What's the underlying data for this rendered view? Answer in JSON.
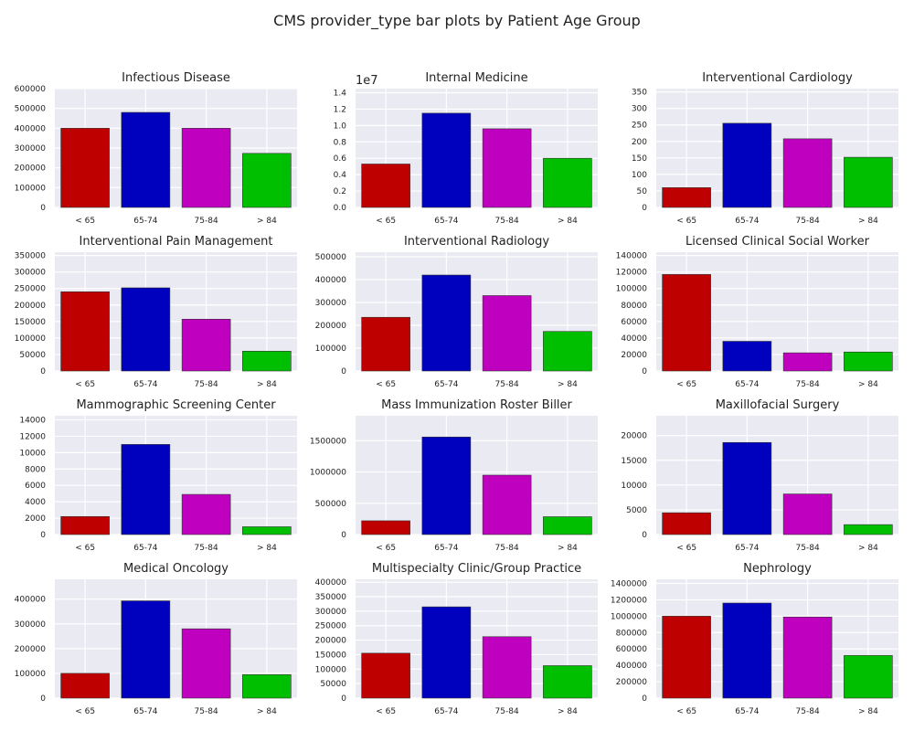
{
  "figure_title": "CMS provider_type bar plots by Patient Age Group",
  "chart_data": [
    {
      "type": "bar",
      "title": "Infectious Disease",
      "categories": [
        "< 65",
        "65-74",
        "75-84",
        "> 84"
      ],
      "values": [
        400000,
        480000,
        400000,
        273000
      ],
      "ylim": [
        0,
        600000
      ],
      "yticks": [
        0,
        100000,
        200000,
        300000,
        400000,
        500000,
        600000
      ],
      "ytick_labels": [
        "0",
        "100000",
        "200000",
        "300000",
        "400000",
        "500000",
        "600000"
      ],
      "offset_text": ""
    },
    {
      "type": "bar",
      "title": "Internal Medicine",
      "categories": [
        "< 65",
        "65-74",
        "75-84",
        "> 84"
      ],
      "values": [
        5300000,
        11500000,
        9600000,
        6000000
      ],
      "ylim": [
        0,
        14500000
      ],
      "yticks": [
        0,
        2000000,
        4000000,
        6000000,
        8000000,
        10000000,
        12000000,
        14000000
      ],
      "ytick_labels": [
        "0.0",
        "0.2",
        "0.4",
        "0.6",
        "0.8",
        "1.0",
        "1.2",
        "1.4"
      ],
      "offset_text": "1e7"
    },
    {
      "type": "bar",
      "title": "Interventional Cardiology",
      "categories": [
        "< 65",
        "65-74",
        "75-84",
        "> 84"
      ],
      "values": [
        60,
        255,
        208,
        152
      ],
      "ylim": [
        0,
        360
      ],
      "yticks": [
        0,
        50,
        100,
        150,
        200,
        250,
        300,
        350
      ],
      "ytick_labels": [
        "0",
        "50",
        "100",
        "150",
        "200",
        "250",
        "300",
        "350"
      ],
      "offset_text": ""
    },
    {
      "type": "bar",
      "title": "Interventional Pain Management",
      "categories": [
        "< 65",
        "65-74",
        "75-84",
        "> 84"
      ],
      "values": [
        240000,
        252000,
        157000,
        60000
      ],
      "ylim": [
        0,
        360000
      ],
      "yticks": [
        0,
        50000,
        100000,
        150000,
        200000,
        250000,
        300000,
        350000
      ],
      "ytick_labels": [
        "0",
        "50000",
        "100000",
        "150000",
        "200000",
        "250000",
        "300000",
        "350000"
      ],
      "offset_text": ""
    },
    {
      "type": "bar",
      "title": "Interventional Radiology",
      "categories": [
        "< 65",
        "65-74",
        "75-84",
        "> 84"
      ],
      "values": [
        235000,
        420000,
        330000,
        173000
      ],
      "ylim": [
        0,
        520000
      ],
      "yticks": [
        0,
        100000,
        200000,
        300000,
        400000,
        500000
      ],
      "ytick_labels": [
        "0",
        "100000",
        "200000",
        "300000",
        "400000",
        "500000"
      ],
      "offset_text": ""
    },
    {
      "type": "bar",
      "title": "Licensed Clinical Social Worker",
      "categories": [
        "< 65",
        "65-74",
        "75-84",
        "> 84"
      ],
      "values": [
        117000,
        36000,
        22000,
        23000
      ],
      "ylim": [
        0,
        144000
      ],
      "yticks": [
        0,
        20000,
        40000,
        60000,
        80000,
        100000,
        120000,
        140000
      ],
      "ytick_labels": [
        "0",
        "20000",
        "40000",
        "60000",
        "80000",
        "100000",
        "120000",
        "140000"
      ],
      "offset_text": ""
    },
    {
      "type": "bar",
      "title": "Mammographic Screening Center",
      "categories": [
        "< 65",
        "65-74",
        "75-84",
        "> 84"
      ],
      "values": [
        2200,
        11000,
        4900,
        950
      ],
      "ylim": [
        0,
        14500
      ],
      "yticks": [
        0,
        2000,
        4000,
        6000,
        8000,
        10000,
        12000,
        14000
      ],
      "ytick_labels": [
        "0",
        "2000",
        "4000",
        "6000",
        "8000",
        "10000",
        "12000",
        "14000"
      ],
      "offset_text": ""
    },
    {
      "type": "bar",
      "title": "Mass Immunization Roster Biller",
      "categories": [
        "< 65",
        "65-74",
        "75-84",
        "> 84"
      ],
      "values": [
        220000,
        1560000,
        950000,
        285000
      ],
      "ylim": [
        0,
        1900000
      ],
      "yticks": [
        0,
        500000,
        1000000,
        1500000
      ],
      "ytick_labels": [
        "0",
        "500000",
        "1000000",
        "1500000"
      ],
      "offset_text": ""
    },
    {
      "type": "bar",
      "title": "Maxillofacial Surgery",
      "categories": [
        "< 65",
        "65-74",
        "75-84",
        "> 84"
      ],
      "values": [
        4400,
        18600,
        8200,
        2000
      ],
      "ylim": [
        0,
        24000
      ],
      "yticks": [
        0,
        5000,
        10000,
        15000,
        20000
      ],
      "ytick_labels": [
        "0",
        "5000",
        "10000",
        "15000",
        "20000"
      ],
      "offset_text": ""
    },
    {
      "type": "bar",
      "title": "Medical Oncology",
      "categories": [
        "< 65",
        "65-74",
        "75-84",
        "> 84"
      ],
      "values": [
        100000,
        393000,
        280000,
        95000
      ],
      "ylim": [
        0,
        480000
      ],
      "yticks": [
        0,
        100000,
        200000,
        300000,
        400000
      ],
      "ytick_labels": [
        "0",
        "100000",
        "200000",
        "300000",
        "400000"
      ],
      "offset_text": ""
    },
    {
      "type": "bar",
      "title": "Multispecialty Clinic/Group Practice",
      "categories": [
        "< 65",
        "65-74",
        "75-84",
        "> 84"
      ],
      "values": [
        155000,
        315000,
        212000,
        112000
      ],
      "ylim": [
        0,
        410000
      ],
      "yticks": [
        0,
        50000,
        100000,
        150000,
        200000,
        250000,
        300000,
        350000,
        400000
      ],
      "ytick_labels": [
        "0",
        "50000",
        "100000",
        "150000",
        "200000",
        "250000",
        "300000",
        "350000",
        "400000"
      ],
      "offset_text": ""
    },
    {
      "type": "bar",
      "title": "Nephrology",
      "categories": [
        "< 65",
        "65-74",
        "75-84",
        "> 84"
      ],
      "values": [
        1000000,
        1160000,
        990000,
        520000
      ],
      "ylim": [
        0,
        1450000
      ],
      "yticks": [
        0,
        200000,
        400000,
        600000,
        800000,
        1000000,
        1200000,
        1400000
      ],
      "ytick_labels": [
        "0",
        "200000",
        "400000",
        "600000",
        "800000",
        "1000000",
        "1200000",
        "1400000"
      ],
      "offset_text": ""
    }
  ],
  "colors": {
    "series": [
      "#bf0000",
      "#0000bf",
      "#bf00bf",
      "#00bf00"
    ],
    "plot_background": "#eaeaf2",
    "grid": "#ffffff"
  },
  "grid": true
}
